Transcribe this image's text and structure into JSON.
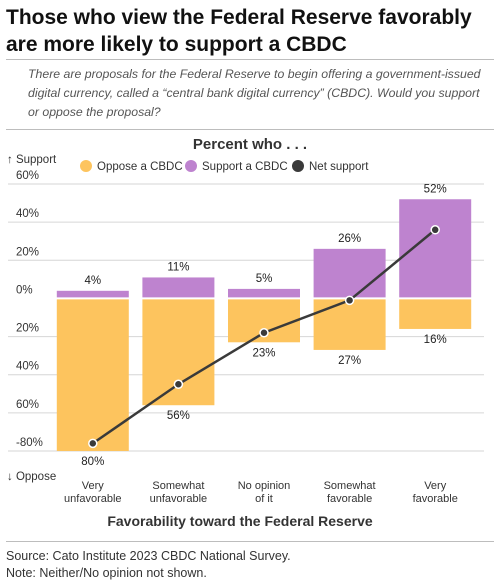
{
  "title": "Those who view the Federal Reserve favorably are more likely to support a CBDC",
  "subtitle": "There are proposals for the Federal Reserve to begin offering a government-issued digital currency, called a “central bank digital currency” (CBDC). Would you support or oppose the proposal?",
  "footer": {
    "source": "Source: Cato Institute 2023 CBDC National Survey.",
    "note": "Note: Neither/No opinion not shown."
  },
  "colors": {
    "oppose": "#fdc45e",
    "support": "#be83cf",
    "net": "#3a3a3a",
    "grid": "#d6d6d6"
  },
  "chart_data": {
    "type": "bar",
    "title": "Percent who . . .",
    "xlabel": "Favorability toward the Federal Reserve",
    "y_top_label": "↑ Support",
    "y_bottom_label": "↓ Oppose",
    "ylim": [
      -80,
      60
    ],
    "yticks": [
      {
        "value": 60,
        "label": "60%"
      },
      {
        "value": 40,
        "label": "40%"
      },
      {
        "value": 20,
        "label": "20%"
      },
      {
        "value": 0,
        "label": "0%"
      },
      {
        "value": -20,
        "label": "20%"
      },
      {
        "value": -40,
        "label": "40%"
      },
      {
        "value": -60,
        "label": "60%"
      },
      {
        "value": -80,
        "label": "-80%"
      }
    ],
    "categories": [
      [
        "Very",
        "unfavorable"
      ],
      [
        "Somewhat",
        "unfavorable"
      ],
      [
        "No opinion",
        "of it"
      ],
      [
        "Somewhat",
        "favorable"
      ],
      [
        "Very",
        "favorable"
      ]
    ],
    "series": [
      {
        "name": "Oppose a CBDC",
        "color": "#fdc45e",
        "values": [
          -80,
          -56,
          -23,
          -27,
          -16
        ],
        "labels": [
          "80%",
          "56%",
          "23%",
          "27%",
          "16%"
        ]
      },
      {
        "name": "Support a CBDC",
        "color": "#be83cf",
        "values": [
          4,
          11,
          5,
          26,
          52
        ],
        "labels": [
          "4%",
          "11%",
          "5%",
          "26%",
          "52%"
        ]
      },
      {
        "name": "Net support",
        "color": "#3a3a3a",
        "type": "line",
        "values": [
          -76,
          -45,
          -18,
          -1,
          36
        ]
      }
    ],
    "legend": "top",
    "grid": true
  }
}
